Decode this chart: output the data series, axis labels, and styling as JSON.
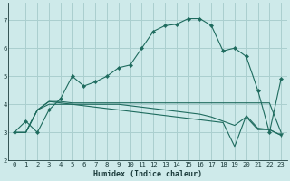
{
  "xlabel": "Humidex (Indice chaleur)",
  "bg_color": "#ceeaea",
  "grid_color": "#aacfcf",
  "line_color": "#1e6b5e",
  "xlim": [
    -0.5,
    23.5
  ],
  "ylim": [
    2.0,
    7.6
  ],
  "xticks": [
    0,
    1,
    2,
    3,
    4,
    5,
    6,
    7,
    8,
    9,
    10,
    11,
    12,
    13,
    14,
    15,
    16,
    17,
    18,
    19,
    20,
    21,
    22,
    23
  ],
  "yticks": [
    2,
    3,
    4,
    5,
    6,
    7
  ],
  "series1_x": [
    0,
    1,
    2,
    3,
    4,
    5,
    6,
    7,
    8,
    9,
    10,
    11,
    12,
    13,
    14,
    15,
    16,
    17,
    18,
    19,
    20,
    21,
    22,
    23
  ],
  "series1_y": [
    3.0,
    3.4,
    3.0,
    3.8,
    4.2,
    5.0,
    4.65,
    4.8,
    5.0,
    5.3,
    5.4,
    6.0,
    6.6,
    6.8,
    6.85,
    7.05,
    7.05,
    6.8,
    5.9,
    6.0,
    5.7,
    4.5,
    3.0,
    4.9
  ],
  "series2_x": [
    0,
    1,
    2,
    3,
    4,
    5,
    6,
    7,
    8,
    9,
    10,
    11,
    12,
    13,
    14,
    15,
    16,
    17,
    18,
    19,
    20,
    21,
    22,
    23
  ],
  "series2_y": [
    3.0,
    3.0,
    3.8,
    4.1,
    4.1,
    4.05,
    4.05,
    4.05,
    4.05,
    4.05,
    4.05,
    4.05,
    4.05,
    4.05,
    4.05,
    4.05,
    4.05,
    4.05,
    4.05,
    4.05,
    4.05,
    4.05,
    4.05,
    3.0
  ],
  "series3_x": [
    0,
    1,
    2,
    3,
    4,
    5,
    6,
    7,
    8,
    9,
    10,
    11,
    12,
    13,
    14,
    15,
    16,
    17,
    18,
    19,
    20,
    21,
    22,
    23
  ],
  "series3_y": [
    3.0,
    3.0,
    3.8,
    4.0,
    4.0,
    4.0,
    4.0,
    4.0,
    4.0,
    4.0,
    3.95,
    3.9,
    3.85,
    3.8,
    3.75,
    3.7,
    3.65,
    3.55,
    3.4,
    3.25,
    3.55,
    3.1,
    3.1,
    2.9
  ],
  "series4_x": [
    0,
    1,
    2,
    3,
    18,
    19,
    20,
    21,
    22,
    23
  ],
  "series4_y": [
    3.0,
    3.0,
    3.8,
    4.1,
    3.35,
    2.5,
    3.6,
    3.15,
    3.1,
    2.9
  ]
}
